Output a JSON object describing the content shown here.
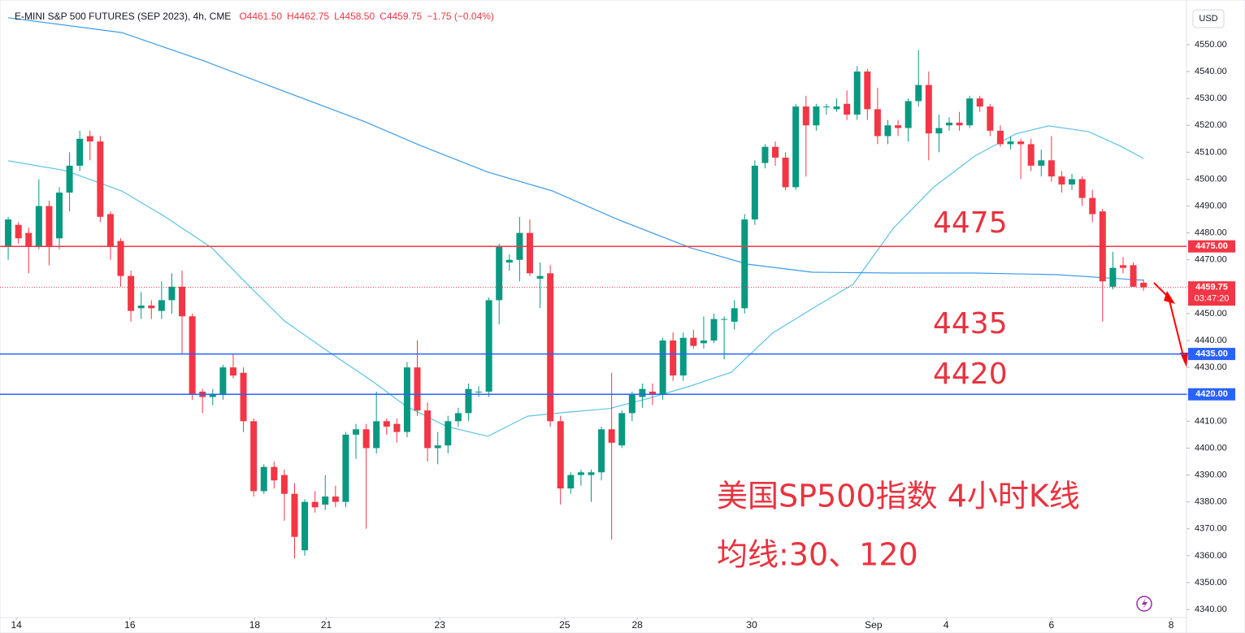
{
  "chart_data": {
    "type": "candlestick",
    "title": "E-MINI S&P 500 FUTURES (SEP 2023), 4h, CME",
    "ohlc_labels": [
      "O4461.50",
      "H4462.75",
      "L4458.50",
      "C4459.75",
      "−1.75 (−0.04%)"
    ],
    "currency": "USD",
    "up_color": "#089981",
    "down_color": "#f23645",
    "open": [
      4475,
      4483,
      4480,
      4475,
      4490,
      4478,
      4495,
      4505,
      4516,
      4514,
      4487,
      4477,
      4464,
      4452,
      4453,
      4451,
      4455,
      4460,
      4449,
      4421,
      4419,
      4420,
      4430,
      4428,
      4410,
      4384,
      4393,
      4390,
      4383,
      4362,
      4380,
      4379,
      4382,
      4380,
      4405,
      4407,
      4400,
      4410,
      4409,
      4406,
      4430,
      4414,
      4400,
      4401,
      4410,
      4413,
      4421,
      4421,
      4455,
      4469,
      4470,
      4480,
      4463,
      4465,
      4410,
      4385,
      4390,
      4390,
      4391,
      4407,
      4401,
      4413,
      4419,
      4421,
      4420,
      4440,
      4427,
      4441,
      4439,
      4440,
      4448,
      4447,
      4452,
      4485,
      4506,
      4512,
      4508,
      4497,
      4527,
      4520,
      4527,
      4526,
      4528,
      4524,
      4540,
      4526,
      4516,
      4520,
      4519,
      4529,
      4535,
      4517,
      4520,
      4521,
      4520,
      4530,
      4527,
      4518,
      4513,
      4514,
      4513,
      4505,
      4507,
      4501,
      4498,
      4500,
      4493,
      4488,
      4460,
      4468,
      4468,
      4461.5
    ],
    "high": [
      4486,
      4484,
      4482,
      4500,
      4492,
      4497,
      4510,
      4518,
      4518,
      4516,
      4488,
      4478,
      4466,
      4458,
      4455,
      4462,
      4465,
      4466,
      4450,
      4422,
      4422,
      4431,
      4435,
      4430,
      4411,
      4394,
      4395,
      4392,
      4387,
      4381,
      4384,
      4390,
      4386,
      4406,
      4409,
      4409,
      4421,
      4411,
      4411,
      4432,
      4440,
      4417,
      4406,
      4412,
      4415,
      4424,
      4423,
      4456,
      4476,
      4472,
      4486,
      4485,
      4469,
      4468,
      4412,
      4391,
      4392,
      4392,
      4408,
      4428,
      4414,
      4421,
      4424,
      4424,
      4441,
      4443,
      4443,
      4444,
      4449,
      4450,
      4449,
      4455,
      4487,
      4507,
      4513,
      4514,
      4510,
      4528,
      4531,
      4528,
      4528,
      4530,
      4533,
      4542,
      4541,
      4534,
      4522,
      4522,
      4530,
      4548,
      4540,
      4524,
      4523,
      4525,
      4531,
      4531,
      4528,
      4520,
      4516,
      4515,
      4515,
      4511,
      4516,
      4503,
      4502,
      4501,
      4496,
      4489,
      4473,
      4471,
      4469,
      4462.75
    ],
    "low": [
      4470,
      4476,
      4465,
      4474,
      4468,
      4474,
      4488,
      4503,
      4507,
      4484,
      4470,
      4460,
      4447,
      4448,
      4448,
      4448,
      4450,
      4435,
      4418,
      4413,
      4416,
      4418,
      4426,
      4406,
      4382,
      4383,
      4385,
      4373,
      4359,
      4360,
      4376,
      4377,
      4378,
      4378,
      4396,
      4370,
      4398,
      4405,
      4402,
      4404,
      4412,
      4395,
      4394,
      4398,
      4408,
      4410,
      4419,
      4419,
      4446,
      4466,
      4462,
      4464,
      4452,
      4408,
      4379,
      4383,
      4386,
      4380,
      4388,
      4366,
      4400,
      4410,
      4415,
      4416,
      4418,
      4425,
      4425,
      4437,
      4437,
      4439,
      4433,
      4444,
      4450,
      4483,
      4504,
      4505,
      4496,
      4496,
      4501,
      4518,
      4524,
      4525,
      4522,
      4522,
      4522,
      4513,
      4513,
      4516,
      4514,
      4527,
      4507,
      4510,
      4518,
      4518,
      4519,
      4525,
      4516,
      4512,
      4511,
      4500,
      4503,
      4501,
      4499,
      4495,
      4496,
      4490,
      4484,
      4447,
      4459,
      4465,
      4460,
      4458.5
    ],
    "close": [
      4485,
      4478,
      4475,
      4490,
      4475,
      4495,
      4505,
      4515,
      4514,
      4486,
      4475,
      4464,
      4451,
      4453,
      4452,
      4455,
      4460,
      4449,
      4420,
      4419,
      4420,
      4430,
      4427,
      4410,
      4384,
      4393,
      4388,
      4383,
      4367,
      4380,
      4378,
      4382,
      4380,
      4405,
      4407,
      4400,
      4410,
      4408,
      4406,
      4430,
      4414,
      4400,
      4401,
      4410,
      4413,
      4422,
      4421,
      4455,
      4475,
      4470,
      4480,
      4465,
      4464,
      4410,
      4385,
      4390,
      4391,
      4391,
      4407,
      4402,
      4413,
      4420,
      4422,
      4420,
      4440,
      4427,
      4441,
      4438,
      4440,
      4448,
      4448,
      4452,
      4485,
      4505,
      4512,
      4508,
      4497,
      4527,
      4520,
      4527,
      4527,
      4527,
      4524,
      4540,
      4526,
      4516,
      4520,
      4519,
      4529,
      4535,
      4517,
      4519,
      4521,
      4520,
      4530,
      4527,
      4518,
      4513,
      4514,
      4513,
      4505,
      4507,
      4501,
      4498,
      4500,
      4493,
      4487,
      4462,
      4467,
      4467,
      4460,
      4459.75
    ],
    "series": [
      {
        "name": "MA30",
        "color": "#5bc4e4",
        "x": [
          0,
          5.6,
          11.1,
          15.1,
          19.9,
          23.0,
          27.0,
          31.0,
          35.7,
          38.9,
          42.9,
          46.9,
          50.8,
          54.8,
          58.8,
          62.7,
          66.7,
          70.7,
          74.7,
          78.6,
          82.6,
          86.6,
          90.5,
          94.5,
          98.5,
          101.7,
          105.6,
          108.8,
          111
        ],
        "values": [
          4506.8,
          4503.2,
          4495.6,
          4486.6,
          4474.5,
          4462.4,
          4447.3,
          4436.7,
          4424.6,
          4415.6,
          4408.0,
          4404.4,
          4411.9,
          4413.4,
          4414.7,
          4418.6,
          4423.1,
          4428.2,
          4442.7,
          4451.8,
          4460.9,
          4482.0,
          4497.1,
          4508.6,
          4516.8,
          4519.8,
          4517.7,
          4512.2,
          4507.7
        ]
      },
      {
        "name": "MA120",
        "color": "#3d9be9",
        "x": [
          0,
          11.1,
          19.1,
          25.4,
          34.9,
          40.5,
          46.9,
          53.2,
          59.6,
          66.7,
          72.3,
          78.6,
          86.6,
          94.5,
          102.5,
          111
        ],
        "values": [
          4560.0,
          4554.5,
          4544.0,
          4534.9,
          4521.3,
          4512.2,
          4502.6,
          4495.6,
          4485.0,
          4474.5,
          4468.4,
          4465.4,
          4465.1,
          4465.1,
          4464.5,
          4462.4
        ]
      }
    ],
    "levels": [
      {
        "value": 4475,
        "label": "4475.00",
        "color": "#f23645"
      },
      {
        "value": 4435,
        "label": "4435.00",
        "color": "#2962ff"
      },
      {
        "value": 4420,
        "label": "4420.00",
        "color": "#2962ff"
      }
    ],
    "last_price": {
      "value": 4459.75,
      "countdown": "03:47:20",
      "color": "#f23645"
    },
    "annotations": [
      "4475",
      "4435",
      "4420",
      "美国SP500指数 4小时K线",
      "均线:30、120"
    ],
    "xlim": [
      -0.8,
      115.2
    ],
    "xticks": [
      {
        "value": 0.8,
        "label": "14"
      },
      {
        "value": 11.9,
        "label": "16"
      },
      {
        "value": 24.1,
        "label": "18"
      },
      {
        "value": 31.1,
        "label": "21"
      },
      {
        "value": 42.2,
        "label": "23"
      },
      {
        "value": 54.4,
        "label": "25"
      },
      {
        "value": 61.5,
        "label": "28"
      },
      {
        "value": 72.7,
        "label": "30"
      },
      {
        "value": 84.6,
        "label": "Sep"
      },
      {
        "value": 91.7,
        "label": "4"
      },
      {
        "value": 102,
        "label": "6"
      },
      {
        "value": 113.7,
        "label": "8"
      }
    ],
    "ylim": [
      4337,
      4566.6
    ],
    "yticks": [
      {
        "value": 4340,
        "label": "4340.00"
      },
      {
        "value": 4350,
        "label": "4350.00"
      },
      {
        "value": 4360,
        "label": "4360.00"
      },
      {
        "value": 4370,
        "label": "4370.00"
      },
      {
        "value": 4380,
        "label": "4380.00"
      },
      {
        "value": 4390,
        "label": "4390.00"
      },
      {
        "value": 4400,
        "label": "4400.00"
      },
      {
        "value": 4410,
        "label": "4410.00"
      },
      {
        "value": 4420,
        "label": "4420.00"
      },
      {
        "value": 4430,
        "label": "4430.00"
      },
      {
        "value": 4440,
        "label": "4440.00"
      },
      {
        "value": 4450,
        "label": "4450.00"
      },
      {
        "value": 4460,
        "label": "4460.00"
      },
      {
        "value": 4470,
        "label": "4470.00"
      },
      {
        "value": 4480,
        "label": "4480.00"
      },
      {
        "value": 4490,
        "label": "4490.00"
      },
      {
        "value": 4500,
        "label": "4500.00"
      },
      {
        "value": 4510,
        "label": "4510.00"
      },
      {
        "value": 4520,
        "label": "4520.00"
      },
      {
        "value": 4530,
        "label": "4530.00"
      },
      {
        "value": 4540,
        "label": "4540.00"
      },
      {
        "value": 4550,
        "label": "4550.00"
      }
    ],
    "grid": false
  }
}
